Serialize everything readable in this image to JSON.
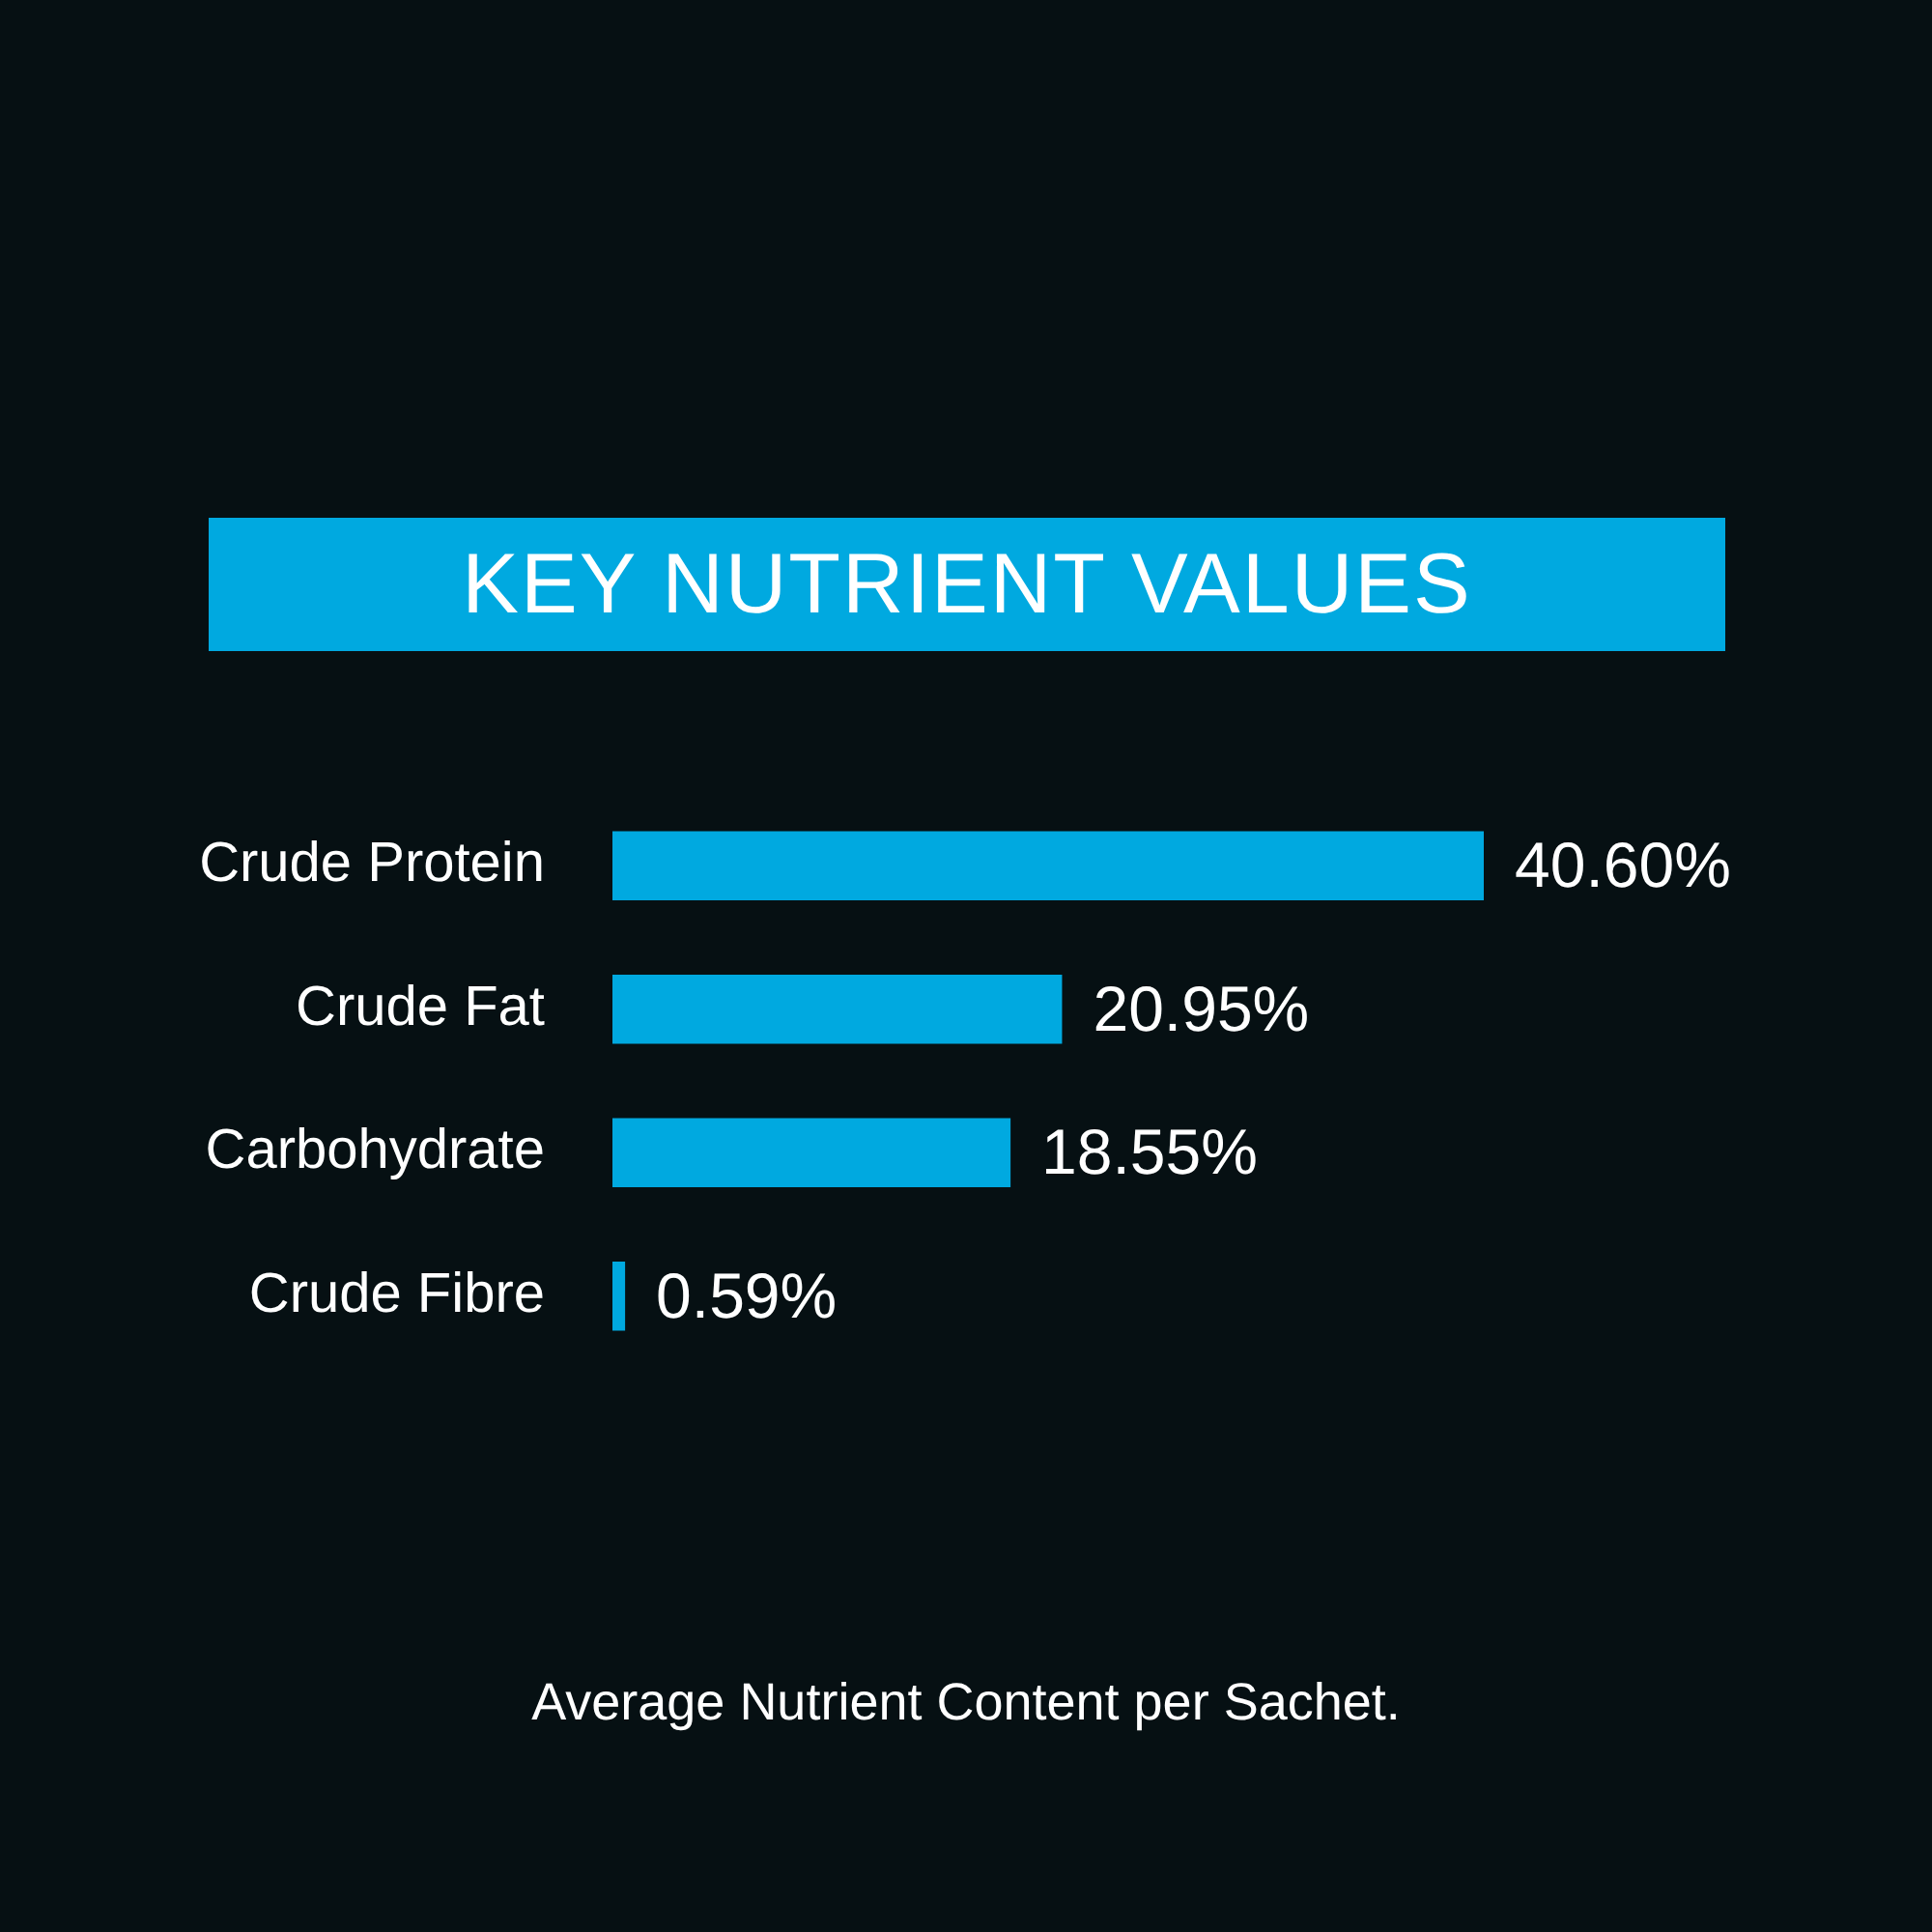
{
  "chart_data": {
    "type": "bar",
    "orientation": "horizontal",
    "title": "KEY NUTRIENT VALUES",
    "categories": [
      "Crude Protein",
      "Crude Fat",
      "Carbohydrate",
      "Crude Fibre"
    ],
    "values": [
      40.6,
      20.95,
      18.55,
      0.59
    ],
    "value_labels": [
      "40.60%",
      "20.95%",
      "18.55%",
      "0.59%"
    ],
    "color": "#00a9e0",
    "annotations": [
      "Average Nutrient Content per Sachet."
    ]
  }
}
